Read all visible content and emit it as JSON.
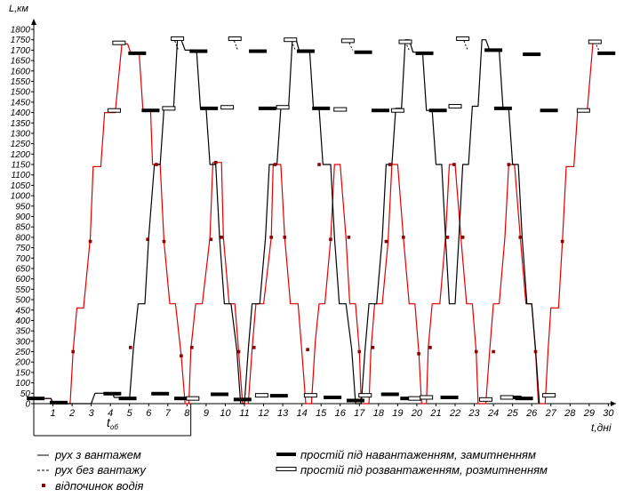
{
  "chart_data": {
    "type": "line",
    "ylabel": "L,км",
    "xlabel": "t,дні",
    "period_label_main": "t",
    "period_label_sub": "об",
    "ylim": [
      0,
      1800
    ],
    "xlim": [
      0,
      30.4
    ],
    "y_ticks": [
      0,
      50,
      100,
      150,
      200,
      250,
      300,
      350,
      400,
      450,
      500,
      550,
      600,
      650,
      700,
      750,
      800,
      850,
      900,
      950,
      1000,
      1050,
      1100,
      1150,
      1200,
      1250,
      1300,
      1350,
      1400,
      1450,
      1500,
      1550,
      1600,
      1650,
      1700,
      1750,
      1800
    ],
    "x_ticks": [
      1,
      2,
      3,
      4,
      5,
      6,
      7,
      8,
      9,
      10,
      11,
      12,
      13,
      14,
      15,
      16,
      17,
      18,
      19,
      20,
      21,
      22,
      23,
      24,
      25,
      26,
      27,
      28,
      29,
      30
    ],
    "period_start": 0,
    "period_end": 8.2,
    "grid": false,
    "colors": {
      "loaded": "#000000",
      "empty": "#000000",
      "rest": "#8b0000",
      "red": "#e00000"
    },
    "series": [
      {
        "name": "red",
        "style": "red",
        "points": [
          [
            0,
            25
          ],
          [
            0.9,
            25
          ],
          [
            1,
            0
          ],
          [
            1.9,
            0
          ],
          [
            2.05,
            250
          ],
          [
            2.25,
            460
          ],
          [
            2.6,
            460
          ],
          [
            2.95,
            800
          ],
          [
            3.1,
            1140
          ],
          [
            3.5,
            1140
          ],
          [
            3.7,
            1400
          ],
          [
            4.25,
            1400
          ],
          [
            4.6,
            1730
          ],
          [
            4.9,
            1730
          ],
          [
            5.05,
            1690
          ],
          [
            5.5,
            1690
          ],
          [
            5.7,
            1410
          ],
          [
            6.1,
            1410
          ],
          [
            6.2,
            1150
          ],
          [
            6.6,
            1150
          ],
          [
            6.8,
            780
          ],
          [
            7.1,
            480
          ],
          [
            7.4,
            480
          ],
          [
            7.7,
            230
          ],
          [
            7.9,
            0
          ],
          [
            8.1,
            0
          ],
          [
            8.2,
            260
          ],
          [
            8.45,
            480
          ],
          [
            8.8,
            480
          ],
          [
            9.2,
            800
          ],
          [
            9.35,
            1160
          ],
          [
            9.8,
            1160
          ],
          [
            9.9,
            800
          ],
          [
            10.2,
            480
          ],
          [
            10.5,
            480
          ],
          [
            10.7,
            250
          ],
          [
            10.9,
            0
          ],
          [
            11.2,
            0
          ],
          [
            11.4,
            260
          ],
          [
            11.6,
            480
          ],
          [
            12.0,
            480
          ],
          [
            12.4,
            800
          ],
          [
            12.5,
            1150
          ],
          [
            12.9,
            1150
          ],
          [
            13.1,
            800
          ],
          [
            13.4,
            480
          ],
          [
            13.8,
            480
          ],
          [
            14.0,
            250
          ],
          [
            14.2,
            0
          ],
          [
            14.5,
            0
          ],
          [
            14.7,
            300
          ],
          [
            14.9,
            480
          ],
          [
            15.2,
            480
          ],
          [
            15.5,
            790
          ],
          [
            15.7,
            1150
          ],
          [
            16.0,
            1150
          ],
          [
            16.3,
            800
          ],
          [
            16.5,
            480
          ],
          [
            16.8,
            480
          ],
          [
            17.0,
            250
          ],
          [
            17.1,
            0
          ],
          [
            17.5,
            0
          ],
          [
            17.6,
            250
          ],
          [
            17.8,
            480
          ],
          [
            18.2,
            480
          ],
          [
            18.5,
            780
          ],
          [
            18.7,
            1150
          ],
          [
            19.0,
            1150
          ],
          [
            19.3,
            800
          ],
          [
            19.6,
            480
          ],
          [
            19.9,
            480
          ],
          [
            20.1,
            250
          ],
          [
            20.25,
            0
          ],
          [
            20.5,
            0
          ],
          [
            20.6,
            270
          ],
          [
            20.8,
            480
          ],
          [
            21.2,
            480
          ],
          [
            21.5,
            800
          ],
          [
            21.7,
            1150
          ],
          [
            22.0,
            1150
          ],
          [
            22.3,
            800
          ],
          [
            22.6,
            480
          ],
          [
            22.9,
            480
          ],
          [
            23.1,
            250
          ],
          [
            23.2,
            0
          ],
          [
            23.6,
            0
          ],
          [
            23.8,
            250
          ],
          [
            24.0,
            480
          ],
          [
            24.3,
            480
          ],
          [
            24.6,
            800
          ],
          [
            24.8,
            1150
          ],
          [
            25.1,
            1150
          ],
          [
            25.4,
            800
          ],
          [
            25.7,
            480
          ],
          [
            26.0,
            480
          ],
          [
            26.2,
            250
          ],
          [
            26.35,
            0
          ],
          [
            26.7,
            0
          ],
          [
            26.85,
            250
          ],
          [
            27.0,
            460
          ],
          [
            27.4,
            460
          ],
          [
            27.6,
            780
          ],
          [
            27.8,
            1140
          ],
          [
            28.2,
            1140
          ],
          [
            28.4,
            1410
          ],
          [
            28.9,
            1410
          ],
          [
            29.2,
            1740
          ],
          [
            29.4,
            1740
          ]
        ]
      },
      {
        "name": "black",
        "style": "black",
        "points": [
          [
            0,
            25
          ],
          [
            0.9,
            25
          ],
          [
            1,
            0
          ],
          [
            2.1,
            0
          ],
          [
            3,
            0
          ],
          [
            3.2,
            50
          ],
          [
            4.1,
            50
          ],
          [
            4.2,
            30
          ],
          [
            4.9,
            30
          ],
          [
            5.0,
            20
          ],
          [
            5.2,
            260
          ],
          [
            5.45,
            480
          ],
          [
            5.8,
            480
          ],
          [
            6.0,
            800
          ],
          [
            6.3,
            1150
          ],
          [
            6.6,
            1150
          ],
          [
            6.8,
            1420
          ],
          [
            7.3,
            1420
          ],
          [
            7.5,
            1750
          ],
          [
            7.7,
            1750
          ],
          [
            7.9,
            1700
          ],
          [
            8.5,
            1700
          ],
          [
            8.7,
            1420
          ],
          [
            9.0,
            1420
          ],
          [
            9.2,
            1150
          ],
          [
            9.5,
            1150
          ],
          [
            9.7,
            800
          ],
          [
            9.95,
            480
          ],
          [
            10.3,
            480
          ],
          [
            10.6,
            260
          ],
          [
            10.8,
            0
          ],
          [
            11.0,
            0
          ],
          [
            11.2,
            260
          ],
          [
            11.4,
            480
          ],
          [
            11.8,
            480
          ],
          [
            12.1,
            800
          ],
          [
            12.3,
            1150
          ],
          [
            12.7,
            1150
          ],
          [
            12.9,
            1420
          ],
          [
            13.3,
            1420
          ],
          [
            13.5,
            1750
          ],
          [
            13.7,
            1750
          ],
          [
            13.85,
            1700
          ],
          [
            14.4,
            1700
          ],
          [
            14.6,
            1420
          ],
          [
            14.9,
            1420
          ],
          [
            15.1,
            1150
          ],
          [
            15.5,
            1150
          ],
          [
            15.7,
            800
          ],
          [
            15.95,
            480
          ],
          [
            16.3,
            480
          ],
          [
            16.6,
            260
          ],
          [
            16.8,
            0
          ],
          [
            17.1,
            0
          ],
          [
            17.3,
            260
          ],
          [
            17.5,
            480
          ],
          [
            17.9,
            480
          ],
          [
            18.2,
            800
          ],
          [
            18.4,
            1150
          ],
          [
            18.7,
            1150
          ],
          [
            18.9,
            1420
          ],
          [
            19.2,
            1420
          ],
          [
            19.4,
            1750
          ],
          [
            19.6,
            1750
          ],
          [
            19.8,
            1690
          ],
          [
            20.3,
            1690
          ],
          [
            20.5,
            1410
          ],
          [
            20.8,
            1410
          ],
          [
            21.0,
            1150
          ],
          [
            21.3,
            1150
          ],
          [
            21.5,
            800
          ],
          [
            21.7,
            480
          ],
          [
            22.0,
            480
          ],
          [
            22.2,
            800
          ],
          [
            22.4,
            1150
          ],
          [
            22.7,
            1150
          ],
          [
            22.9,
            1430
          ],
          [
            23.2,
            1430
          ],
          [
            23.4,
            1750
          ],
          [
            23.6,
            1750
          ],
          [
            23.8,
            1700
          ],
          [
            24.3,
            1700
          ],
          [
            24.5,
            1420
          ],
          [
            24.8,
            1420
          ],
          [
            25.0,
            1150
          ],
          [
            25.3,
            1150
          ],
          [
            25.5,
            800
          ],
          [
            25.75,
            480
          ],
          [
            26.0,
            480
          ],
          [
            26.2,
            260
          ],
          [
            26.4,
            0
          ]
        ]
      }
    ],
    "dashed_segments": [
      [
        [
          4.4,
          1740
        ],
        [
          4.6,
          1730
        ]
      ],
      [
        [
          7.3,
          1760
        ],
        [
          7.55,
          1700
        ]
      ],
      [
        [
          10.4,
          1760
        ],
        [
          10.65,
          1700
        ]
      ],
      [
        [
          13.4,
          1760
        ],
        [
          13.65,
          1700
        ]
      ],
      [
        [
          16.4,
          1750
        ],
        [
          16.65,
          1700
        ]
      ],
      [
        [
          19.4,
          1740
        ],
        [
          19.6,
          1700
        ]
      ],
      [
        [
          22.4,
          1760
        ],
        [
          22.65,
          1700
        ]
      ],
      [
        [
          29.3,
          1740
        ],
        [
          29.5,
          1700
        ]
      ]
    ],
    "loading_rests": [
      [
        0.1,
        25
      ],
      [
        1.3,
        5
      ],
      [
        4.1,
        48
      ],
      [
        4.9,
        25
      ],
      [
        5.4,
        1685
      ],
      [
        6.1,
        1410
      ],
      [
        6.6,
        48
      ],
      [
        7.8,
        25
      ],
      [
        8.6,
        1695
      ],
      [
        9.15,
        1420
      ],
      [
        9.7,
        45
      ],
      [
        10.9,
        20
      ],
      [
        11.7,
        1695
      ],
      [
        12.2,
        1420
      ],
      [
        12.8,
        38
      ],
      [
        14.2,
        1695
      ],
      [
        15.0,
        1420
      ],
      [
        15.6,
        30
      ],
      [
        16.8,
        15
      ],
      [
        17.2,
        1690
      ],
      [
        18.1,
        1410
      ],
      [
        18.6,
        45
      ],
      [
        19.6,
        25
      ],
      [
        20.4,
        1685
      ],
      [
        21.1,
        1410
      ],
      [
        21.7,
        30
      ],
      [
        24.0,
        1700
      ],
      [
        24.5,
        1420
      ],
      [
        25.0,
        30
      ],
      [
        25.6,
        25
      ],
      [
        26.0,
        1680
      ],
      [
        26.9,
        1410
      ],
      [
        29.9,
        1685
      ]
    ],
    "unloading_rests": [
      [
        4.2,
        1410
      ],
      [
        4.45,
        1735
      ],
      [
        7.05,
        1420
      ],
      [
        7.5,
        1755
      ],
      [
        8.3,
        25
      ],
      [
        10.1,
        1425
      ],
      [
        10.5,
        1755
      ],
      [
        11.9,
        40
      ],
      [
        13.0,
        1425
      ],
      [
        13.4,
        1750
      ],
      [
        14.45,
        40
      ],
      [
        16.0,
        1415
      ],
      [
        16.4,
        1745
      ],
      [
        17.3,
        40
      ],
      [
        19.0,
        1410
      ],
      [
        19.4,
        1740
      ],
      [
        19.9,
        25
      ],
      [
        20.5,
        30
      ],
      [
        22.0,
        1430
      ],
      [
        22.4,
        1755
      ],
      [
        23.6,
        20
      ],
      [
        24.7,
        30
      ],
      [
        26.9,
        40
      ],
      [
        28.7,
        1410
      ],
      [
        29.3,
        1740
      ]
    ],
    "driver_rests": [
      [
        2.05,
        250
      ],
      [
        2.95,
        780
      ],
      [
        5.05,
        270
      ],
      [
        5.95,
        790
      ],
      [
        6.4,
        1150
      ],
      [
        6.8,
        780
      ],
      [
        7.7,
        230
      ],
      [
        8.25,
        270
      ],
      [
        9.5,
        1160
      ],
      [
        9.25,
        790
      ],
      [
        9.8,
        800
      ],
      [
        10.7,
        250
      ],
      [
        11.5,
        270
      ],
      [
        12.4,
        800
      ],
      [
        12.6,
        1150
      ],
      [
        13.1,
        800
      ],
      [
        14.3,
        260
      ],
      [
        14.9,
        1150
      ],
      [
        15.5,
        790
      ],
      [
        16.45,
        800
      ],
      [
        17.0,
        250
      ],
      [
        17.7,
        270
      ],
      [
        18.4,
        780
      ],
      [
        18.6,
        1150
      ],
      [
        19.3,
        800
      ],
      [
        20.1,
        240
      ],
      [
        20.7,
        270
      ],
      [
        21.6,
        800
      ],
      [
        21.95,
        1150
      ],
      [
        22.4,
        800
      ],
      [
        23.1,
        250
      ],
      [
        24.0,
        250
      ],
      [
        24.8,
        1150
      ],
      [
        25.4,
        800
      ],
      [
        26.2,
        250
      ],
      [
        27.6,
        780
      ]
    ]
  },
  "legend": {
    "loaded": "рух з вантажем",
    "empty": "рух без вантажу",
    "rest": "відпочинок водія",
    "loading": "простій під навантаженням, замитненням",
    "unloading": "простій під розвантаженням, розмитненням"
  }
}
